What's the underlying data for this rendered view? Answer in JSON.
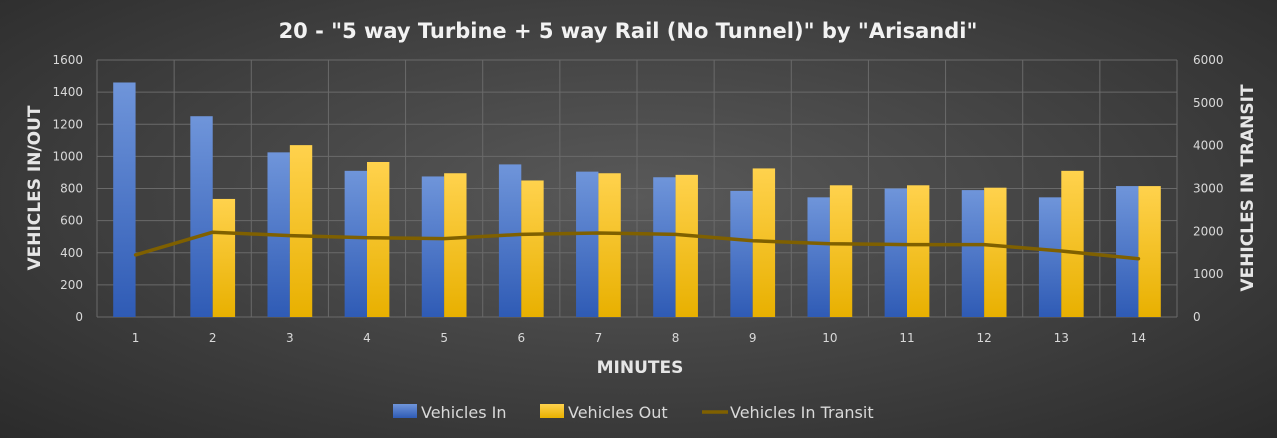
{
  "chart_data": {
    "type": "bar",
    "title": "20 - \"5 way Turbine + 5 way Rail (No Tunnel)\" by \"Arisandi\"",
    "xlabel": "MINUTES",
    "ylabel": "VEHICLES IN/OUT",
    "y2label": "VEHICLES IN TRANSIT",
    "categories": [
      "1",
      "2",
      "3",
      "4",
      "5",
      "6",
      "7",
      "8",
      "9",
      "10",
      "11",
      "12",
      "13",
      "14"
    ],
    "ylim": [
      0,
      1600
    ],
    "y_ticks": [
      "0",
      "200",
      "400",
      "600",
      "800",
      "1000",
      "1200",
      "1400",
      "1600"
    ],
    "y2lim": [
      0,
      6000
    ],
    "y2_ticks": [
      "0",
      "1000",
      "2000",
      "3000",
      "4000",
      "5000",
      "6000"
    ],
    "grid": true,
    "legend_position": "bottom",
    "series": [
      {
        "name": "Vehicles In",
        "type": "bar",
        "axis": "left",
        "color": "#4472c4",
        "values": [
          1460,
          1250,
          1025,
          910,
          875,
          950,
          905,
          870,
          785,
          745,
          800,
          790,
          745,
          815
        ]
      },
      {
        "name": "Vehicles Out",
        "type": "bar",
        "axis": "left",
        "color": "#ffc000",
        "values": [
          0,
          735,
          1070,
          965,
          895,
          850,
          895,
          885,
          925,
          820,
          820,
          805,
          910,
          815
        ]
      },
      {
        "name": "Vehicles In Transit",
        "type": "line",
        "axis": "right",
        "color": "#7f6000",
        "values": [
          1450,
          1980,
          1900,
          1850,
          1830,
          1930,
          1960,
          1930,
          1780,
          1710,
          1690,
          1690,
          1540,
          1360
        ]
      }
    ]
  }
}
